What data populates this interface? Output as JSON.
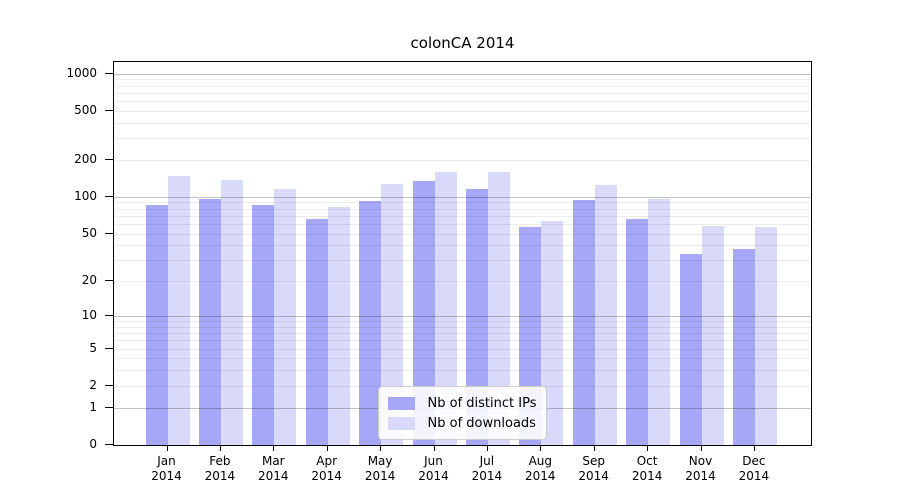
{
  "chart_data": {
    "type": "bar",
    "title": "colonCA 2014",
    "categories": [
      "Jan",
      "Feb",
      "Mar",
      "Apr",
      "May",
      "Jun",
      "Jul",
      "Aug",
      "Sep",
      "Oct",
      "Nov",
      "Dec"
    ],
    "category_year": "2014",
    "series": [
      {
        "name": "Nb of distinct IPs",
        "color": "#a7a7f7",
        "values": [
          86,
          97,
          86,
          66,
          93,
          135,
          117,
          57,
          94,
          66,
          34,
          37
        ]
      },
      {
        "name": "Nb of downloads",
        "color": "#d9d9f9",
        "values": [
          148,
          136,
          116,
          83,
          128,
          158,
          158,
          64,
          125,
          96,
          58,
          57
        ]
      }
    ],
    "y_ticks": [
      0,
      1,
      2,
      5,
      10,
      20,
      50,
      100,
      200,
      500,
      1000
    ],
    "y_scale": "log1p",
    "ylim": [
      0,
      1250
    ],
    "grid": true,
    "legend_position": "lower center",
    "colors": {
      "background": "#ffffff",
      "frame": "#000000",
      "text": "#000000",
      "major_grid": "#c2c2c2",
      "minor_grid": "#ececec"
    }
  }
}
